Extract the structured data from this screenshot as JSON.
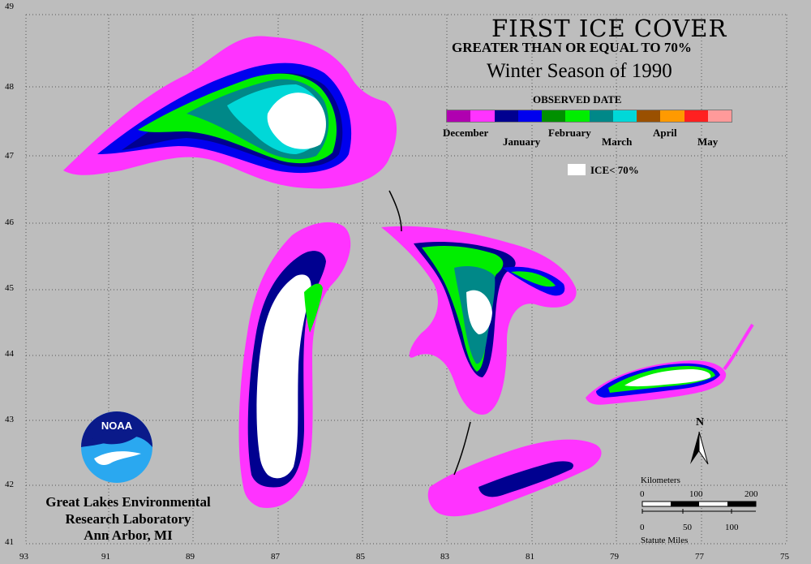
{
  "title": "FIRST ICE COVER",
  "subtitle": "GREATER THAN OR EQUAL TO 70%",
  "season": "Winter Season of 1990",
  "legend": {
    "heading": "OBSERVED DATE",
    "months": [
      "December",
      "January",
      "February",
      "March",
      "April",
      "May"
    ],
    "colors": [
      "#b000b0",
      "#ff33ff",
      "#000090",
      "#0000ee",
      "#009000",
      "#00ee00",
      "#008888",
      "#00d8d8",
      "#9a5000",
      "#ff9a00",
      "#ff2020",
      "#ff9a9a"
    ],
    "ice_label": "ICE< 70%",
    "ice_color": "#ffffff"
  },
  "latitudes": [
    "49",
    "48",
    "47",
    "46",
    "45",
    "44",
    "43",
    "42",
    "41"
  ],
  "longitudes": [
    "93",
    "91",
    "89",
    "87",
    "85",
    "83",
    "81",
    "79",
    "77",
    "75"
  ],
  "organization": {
    "logo_text": "NOAA",
    "line1": "Great Lakes Environmental",
    "line2": "Research Laboratory",
    "line3": "Ann Arbor, MI"
  },
  "north_label": "N",
  "scale": {
    "km_label": "Kilometers",
    "km_ticks": [
      "0",
      "100",
      "200"
    ],
    "mi_label": "Statute Miles",
    "mi_ticks": [
      "0",
      "50",
      "100"
    ]
  }
}
